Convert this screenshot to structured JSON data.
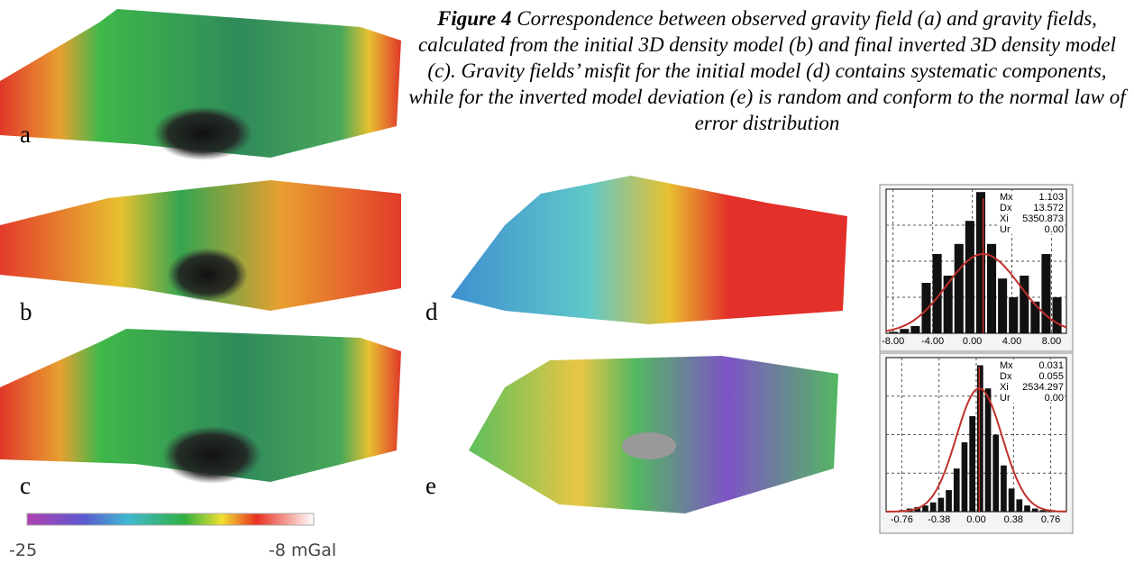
{
  "caption": {
    "label": "Figure 4",
    "text": "Correspondence between observed gravity field (a) and gravity fields, calculated from the initial 3D density model (b) and final inverted 3D density model (c). Gravity fields’ misfit for the initial model (d) contains systematic components, while for the inverted model deviation (e) is random and conform to the normal law of error distribution"
  },
  "panels": [
    {
      "label": "a"
    },
    {
      "label": "b"
    },
    {
      "label": "c"
    },
    {
      "label": "d"
    },
    {
      "label": "e"
    }
  ],
  "colorbar": {
    "min_label": "-25",
    "max_label": "-8 mGal"
  },
  "histograms": [
    {
      "stats": [
        {
          "name": "Mx",
          "value": 1.103
        },
        {
          "name": "Dx",
          "value": 13.572
        },
        {
          "name": "Xi",
          "value": 5350.873
        },
        {
          "name": "Ur",
          "value": {
            "value": 0,
            "label": "0.00"
          }
        }
      ],
      "xlim": [
        -8.7,
        9.5
      ],
      "ylim": [
        0,
        100
      ],
      "xticks": [
        {
          "value": -8,
          "label": "-8.00"
        },
        {
          "value": -4,
          "label": "-4.00"
        },
        {
          "value": 0,
          "label": "0.00"
        },
        {
          "value": 4,
          "label": "4.00"
        },
        {
          "value": 8,
          "label": "8.00"
        }
      ],
      "bins": [
        -8.5,
        -7.4,
        -6.3,
        -5.2,
        -4.1,
        -3,
        -1.9,
        -0.8,
        0.3,
        1.4,
        2.5,
        3.6,
        4.7,
        5.8,
        6.9,
        8,
        9.1
      ],
      "counts": [
        1,
        3,
        5,
        35,
        55,
        40,
        62,
        78,
        98,
        62,
        38,
        25,
        40,
        22,
        55,
        25
      ]
    },
    {
      "stats": [
        {
          "name": "Mx",
          "value": 0.031
        },
        {
          "name": "Dx",
          "value": 0.055
        },
        {
          "name": "Xi",
          "value": 2534.297
        },
        {
          "name": "Ur",
          "value": {
            "value": 0,
            "label": "0.00"
          }
        }
      ],
      "xlim": [
        -0.92,
        0.92
      ],
      "ylim": [
        0,
        100
      ],
      "xticks": [
        -0.76,
        -0.38,
        {
          "value": 0,
          "label": "0.00"
        },
        0.38,
        0.76
      ],
      "bins": [
        -0.8,
        -0.72,
        -0.64,
        -0.56,
        -0.48,
        -0.4,
        -0.32,
        -0.24,
        -0.16,
        -0.08,
        0,
        0.08,
        0.16,
        0.24,
        0.32,
        0.4,
        0.48,
        0.56,
        0.64,
        0.72,
        0.8
      ],
      "counts": [
        1,
        2,
        3,
        4,
        6,
        9,
        14,
        28,
        45,
        62,
        95,
        80,
        50,
        30,
        15,
        8,
        4,
        2,
        1,
        1
      ]
    }
  ]
}
